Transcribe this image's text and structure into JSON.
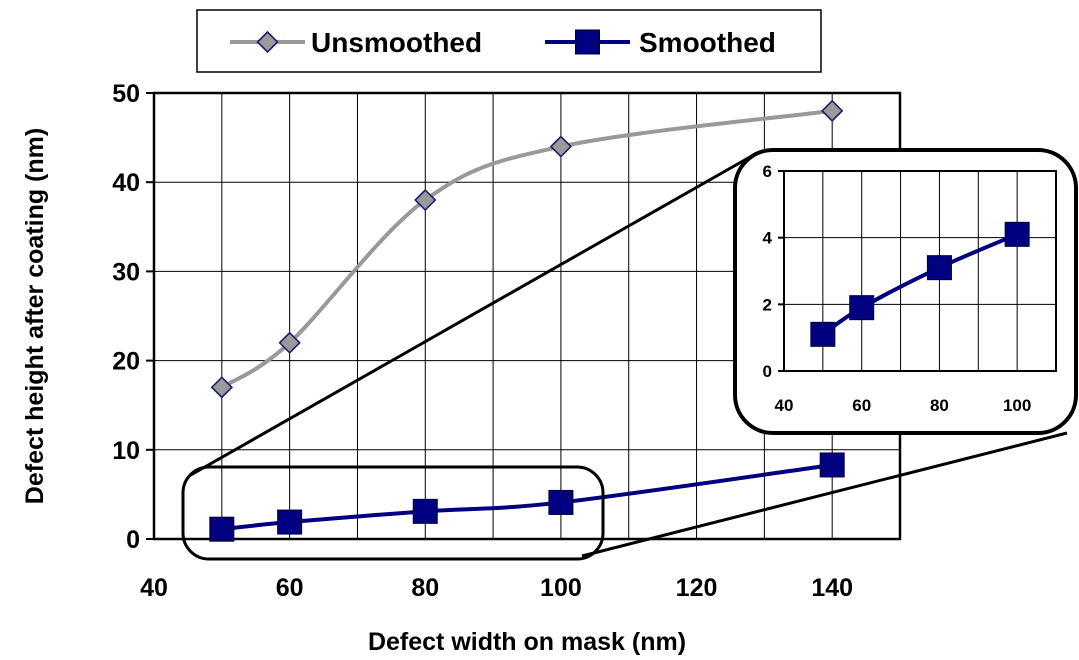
{
  "chart_data": [
    {
      "type": "line",
      "xlabel": "Defect width on mask (nm)",
      "ylabel": "Defect height after coating (nm)",
      "xlim": [
        40,
        150
      ],
      "ylim": [
        0,
        50
      ],
      "x_ticks": [
        40,
        60,
        80,
        100,
        120,
        140
      ],
      "y_ticks": [
        0,
        10,
        20,
        30,
        40,
        50
      ],
      "grid": true,
      "legend_position": "top",
      "series": [
        {
          "name": "Unsmoothed",
          "color": "#999999",
          "marker": "diamond",
          "x": [
            50,
            60,
            80,
            100,
            140
          ],
          "y": [
            17,
            22,
            38,
            44,
            48
          ]
        },
        {
          "name": "Smoothed",
          "color": "#000080",
          "marker": "square",
          "x": [
            50,
            60,
            80,
            100,
            140
          ],
          "y": [
            1.1,
            1.9,
            3.1,
            4.1,
            8.3
          ]
        }
      ]
    },
    {
      "type": "line",
      "role": "inset zoom of Smoothed series",
      "xlim": [
        40,
        110
      ],
      "ylim": [
        0,
        6
      ],
      "x_ticks": [
        40,
        60,
        80,
        100
      ],
      "y_ticks": [
        0,
        2,
        4,
        6
      ],
      "grid": true,
      "series": [
        {
          "color": "#000080",
          "marker": "square",
          "x": [
            50,
            60,
            80,
            100
          ],
          "y": [
            1.1,
            1.9,
            3.1,
            4.1
          ]
        }
      ]
    }
  ]
}
